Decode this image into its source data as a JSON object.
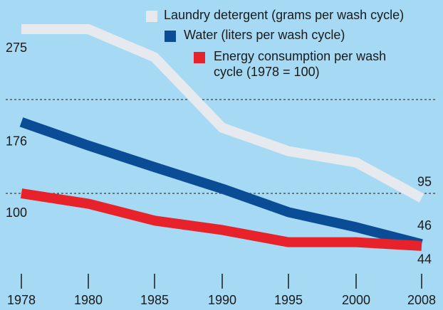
{
  "chart_data": {
    "type": "line",
    "categories": [
      "1978",
      "1980",
      "1985",
      "1990",
      "1995",
      "2000",
      "2008"
    ],
    "series": [
      {
        "name": "Laundry detergent (grams per wash cycle)",
        "color": "#e6eaee",
        "values": [
          275,
          275,
          245,
          170,
          145,
          133,
          95
        ]
      },
      {
        "name": "Water (liters per wash cycle)",
        "color": "#0b4c97",
        "values": [
          176,
          151,
          128,
          105,
          80,
          64,
          46
        ]
      },
      {
        "name": "Energy consumption per wash cycle (1978 = 100)",
        "color": "#e8222b",
        "values": [
          100,
          89,
          71,
          61,
          48,
          48,
          44
        ]
      }
    ],
    "ylim": [
      0,
      300
    ],
    "yticks": [
      100,
      200
    ],
    "grid": true,
    "legend": "top-right"
  }
}
